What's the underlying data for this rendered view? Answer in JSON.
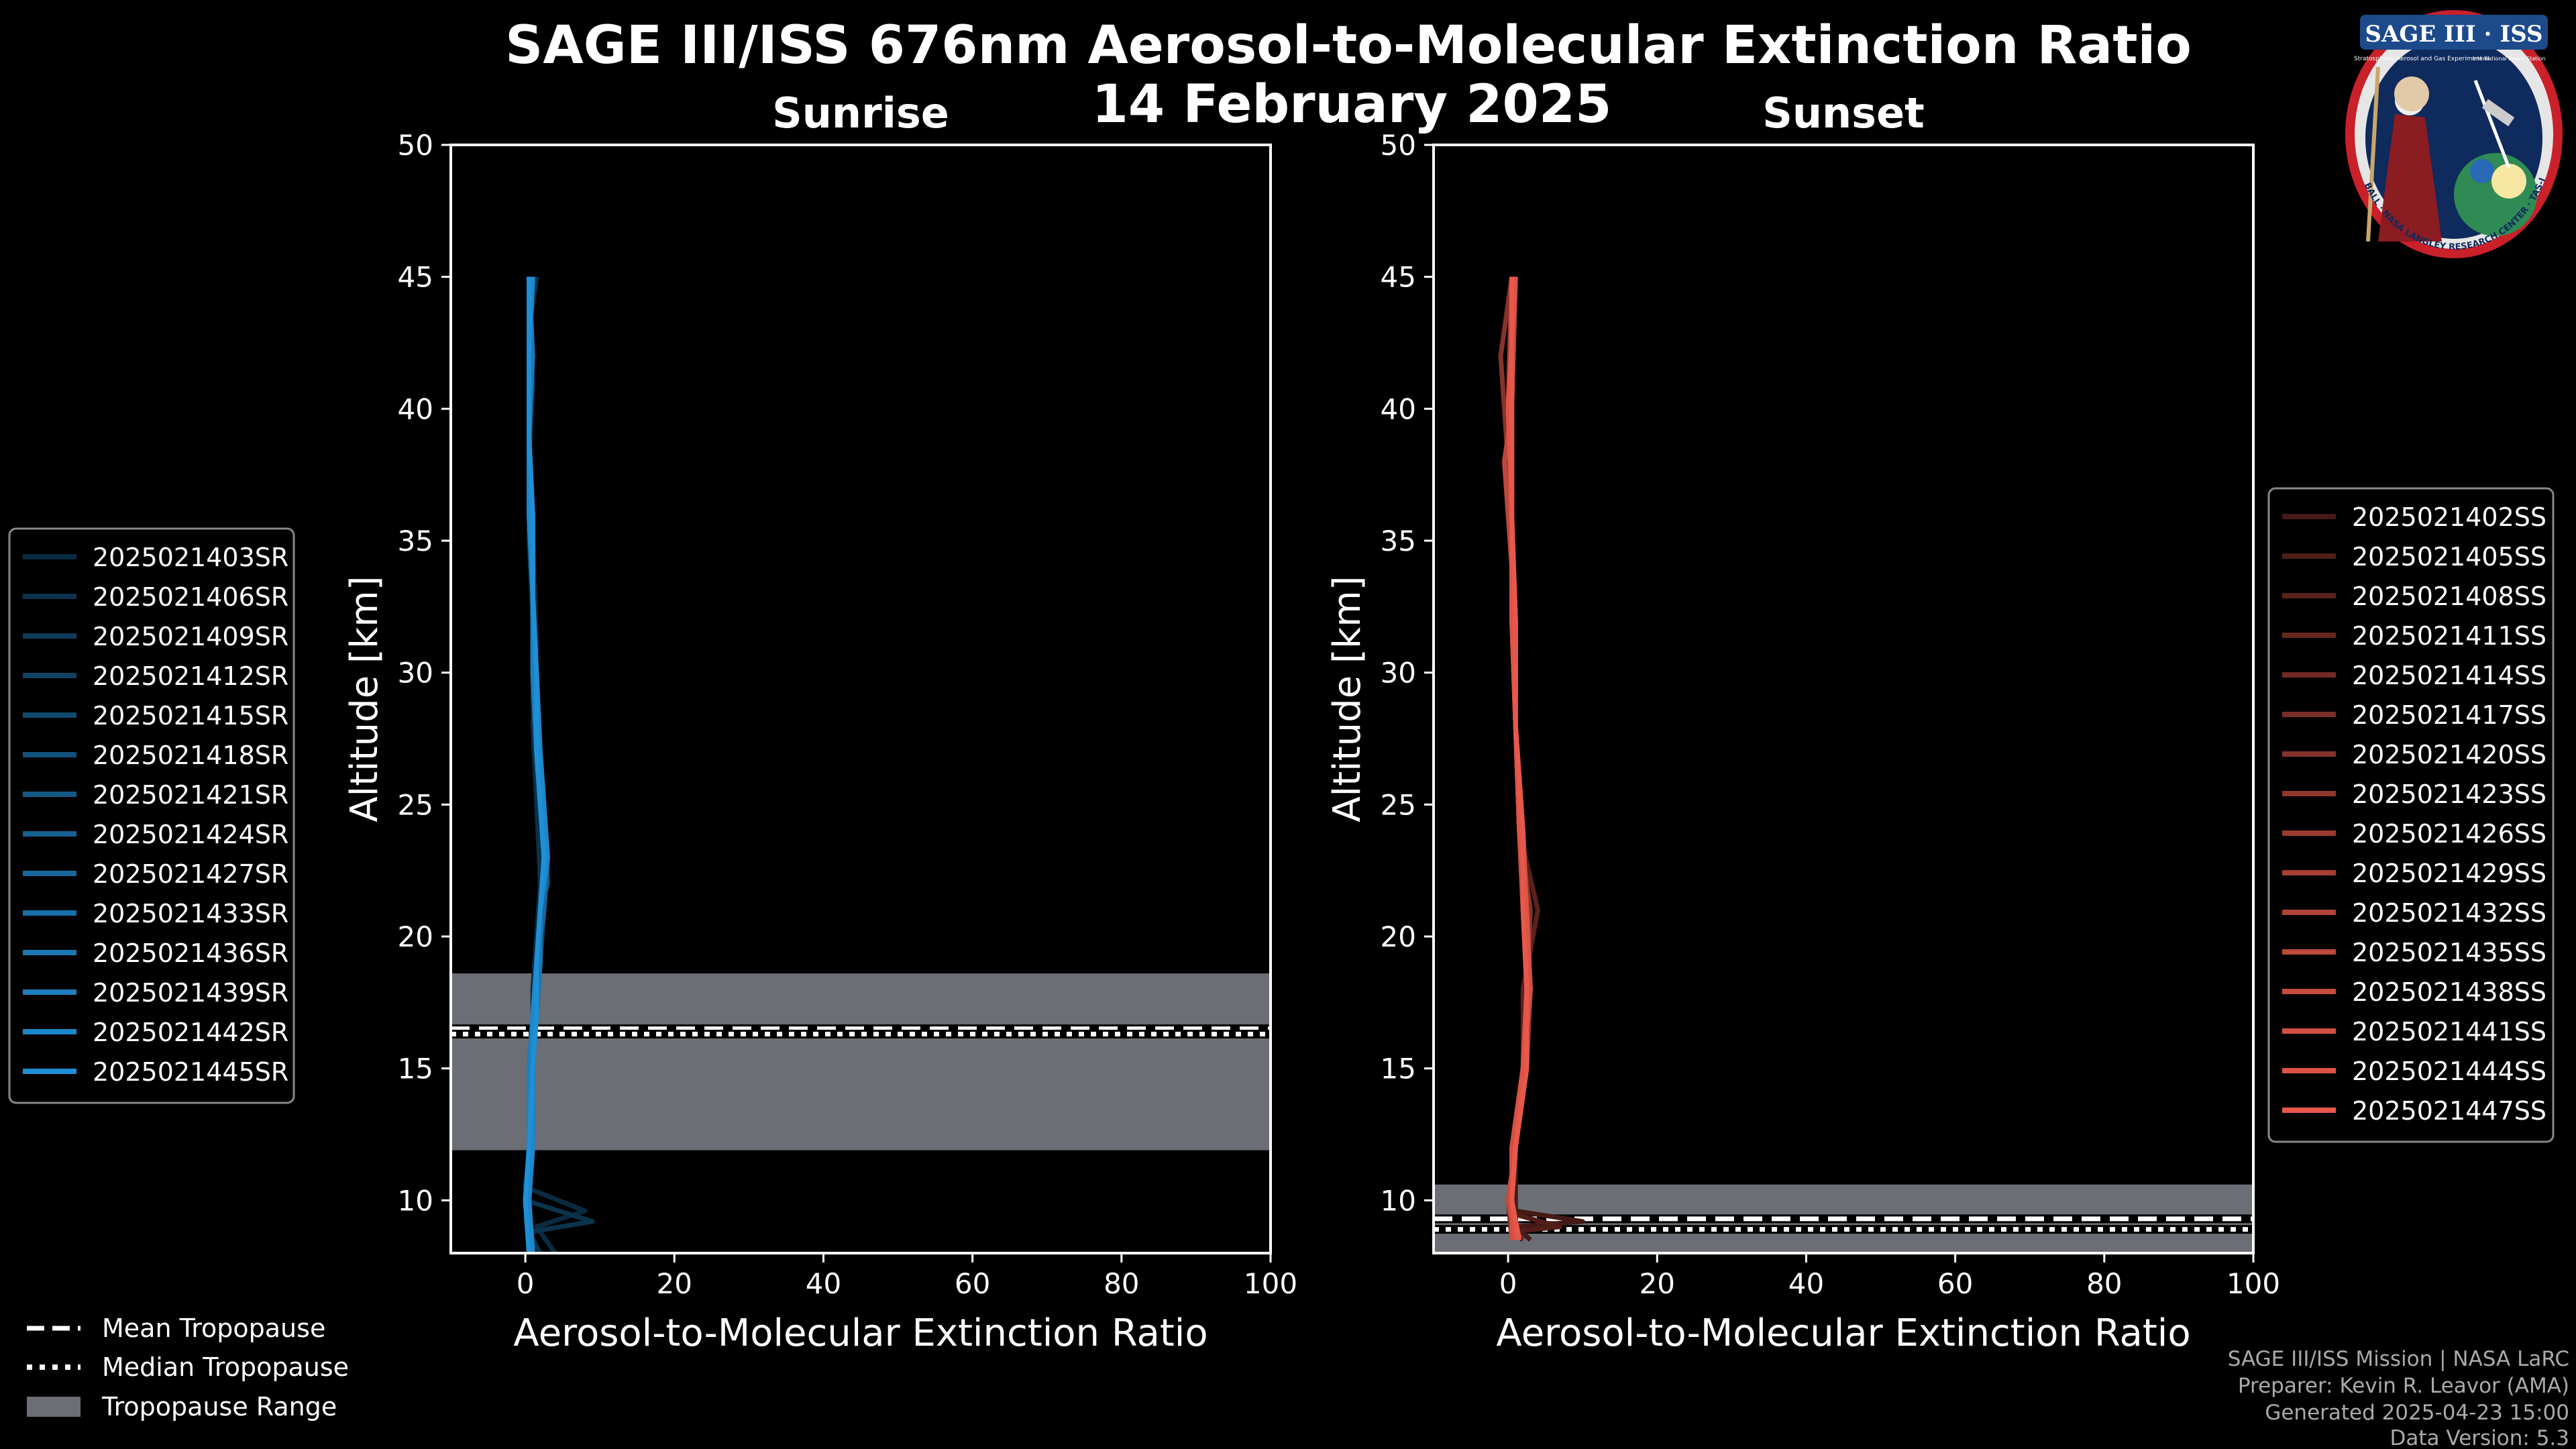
{
  "figure": {
    "title_line1": "SAGE III/ISS 676nm Aerosol-to-Molecular Extinction Ratio",
    "title_line2": "14 February 2025"
  },
  "logo": {
    "text": "SAGE III · ISS",
    "subtitle": "Stratospheric Aerosol and Gas Experiment III",
    "ring_text": "BALL · NASA LANGLEY RESEARCH CENTER · TAS-I · ESA",
    "side_text": "International Space Station"
  },
  "credits": {
    "line1": "SAGE III/ISS Mission | NASA LaRC",
    "line2": "Preparer: Kevin R. Leavor (AMA)",
    "line3": "Generated 2025-04-23 15:00",
    "line4": "Data Version: 5.3"
  },
  "tropo_legend": {
    "mean": "Mean Tropopause",
    "median": "Median Tropopause",
    "range": "Tropopause Range"
  },
  "colors": {
    "sunrise": "#1f8fd6",
    "sunset": "#e8584a",
    "tropo_fill": "#6b6e74",
    "axes": "#ffffff"
  },
  "chart_data": [
    {
      "type": "line",
      "panel": "sunrise",
      "title": "Sunrise",
      "xlabel": "Aerosol-to-Molecular Extinction Ratio",
      "ylabel": "Altitude [km]",
      "xlim": [
        -10,
        100
      ],
      "ylim": [
        8,
        50
      ],
      "xticks": [
        0,
        20,
        40,
        60,
        80,
        100
      ],
      "yticks": [
        10,
        15,
        20,
        25,
        30,
        35,
        40,
        45,
        50
      ],
      "tropopause": {
        "mean": 16.5,
        "median": 16.3,
        "range": [
          11.9,
          18.6
        ]
      },
      "legend_position": "left",
      "series": [
        {
          "name": "2025021403SR",
          "x": [
            4,
            1.5,
            8,
            0,
            0.5,
            0.5,
            1,
            1,
            1.5,
            2,
            1.5,
            1,
            1.5,
            1,
            0.5,
            0.5,
            0.5,
            1
          ],
          "y": [
            8,
            9,
            9.6,
            10.5,
            11.5,
            13,
            16,
            18,
            20,
            22,
            25,
            28,
            31,
            35,
            38,
            41,
            43,
            45
          ]
        },
        {
          "name": "2025021406SR",
          "x": [
            2,
            0.5,
            9,
            0,
            0.5,
            1,
            1,
            1.5,
            2,
            2,
            1.5,
            1,
            1,
            0.5,
            0.5,
            1,
            0.5,
            1.5
          ],
          "y": [
            8,
            8.8,
            9.2,
            10,
            12,
            15,
            17,
            19,
            21,
            23,
            26,
            29,
            32,
            35,
            38,
            41,
            43,
            45
          ]
        },
        {
          "name": "2025021409SR",
          "x": [
            1,
            0,
            0.5,
            1,
            1,
            1.5,
            2,
            2.5,
            2,
            1.5,
            1.5,
            1,
            1,
            0.5,
            0.5,
            0.5
          ],
          "y": [
            8,
            10,
            12,
            15,
            17,
            19,
            21,
            23,
            25,
            27,
            30,
            33,
            36,
            39,
            42,
            45
          ]
        },
        {
          "name": "2025021412SR",
          "x": [
            0.5,
            0,
            0.5,
            0.5,
            1,
            1.5,
            2,
            2.5,
            2,
            1.5,
            1,
            1,
            0.5,
            0.5,
            0.5,
            1
          ],
          "y": [
            8,
            10,
            12,
            15,
            17,
            19,
            21,
            23,
            25,
            27,
            30,
            33,
            36,
            39,
            42,
            45
          ]
        },
        {
          "name": "2025021415SR",
          "x": [
            1,
            0.5,
            1,
            1,
            1.5,
            2,
            2.5,
            3,
            2.5,
            2,
            1.5,
            1,
            1,
            0.5,
            0.5,
            0.5
          ],
          "y": [
            8,
            10,
            12,
            15,
            17,
            19,
            21,
            23,
            25,
            27,
            30,
            33,
            36,
            39,
            42,
            45
          ]
        },
        {
          "name": "2025021418SR",
          "x": [
            0.5,
            0,
            0.5,
            1,
            1,
            1.5,
            2,
            3,
            2.5,
            2,
            1.5,
            1,
            0.5,
            0.5,
            1,
            0.5
          ],
          "y": [
            8,
            10,
            12,
            15,
            17,
            19,
            21,
            22,
            25,
            27,
            30,
            33,
            36,
            39,
            42,
            45
          ]
        },
        {
          "name": "2025021421SR",
          "x": [
            1,
            0.5,
            0.5,
            1,
            1.5,
            1.5,
            2,
            2.5,
            2,
            2,
            1.5,
            1,
            1,
            0.5,
            0.5,
            1
          ],
          "y": [
            8,
            10,
            12,
            15,
            17,
            19,
            21,
            23,
            25,
            27,
            30,
            33,
            36,
            39,
            42,
            45
          ]
        },
        {
          "name": "2025021424SR",
          "x": [
            0.5,
            0,
            0.5,
            0.5,
            1,
            1.5,
            2,
            2.5,
            2,
            1.5,
            1.5,
            1,
            0.5,
            0.5,
            0.5,
            0.5
          ],
          "y": [
            8,
            10,
            12,
            15,
            17,
            19,
            21,
            23,
            25,
            27,
            30,
            33,
            36,
            39,
            42,
            45
          ]
        },
        {
          "name": "2025021427SR",
          "x": [
            1,
            0.5,
            1,
            1,
            1,
            1.5,
            2.5,
            3,
            2.5,
            2,
            1.5,
            1,
            1,
            0.5,
            0.5,
            1
          ],
          "y": [
            8,
            10,
            12,
            15,
            17,
            19,
            21,
            23,
            25,
            27,
            30,
            33,
            36,
            39,
            42,
            45
          ]
        },
        {
          "name": "2025021433SR",
          "x": [
            0.5,
            0,
            0.5,
            1,
            1,
            1.5,
            2,
            2.5,
            2,
            1.5,
            1,
            1,
            0.5,
            0.5,
            0.5,
            0.5
          ],
          "y": [
            8,
            10,
            12,
            15,
            17,
            19,
            21,
            23,
            25,
            27,
            30,
            33,
            36,
            39,
            42,
            45
          ]
        },
        {
          "name": "2025021436SR",
          "x": [
            1,
            0.5,
            0.5,
            1,
            1.5,
            2,
            2,
            2.5,
            2.5,
            2,
            1.5,
            1,
            1,
            0.5,
            1,
            0.5
          ],
          "y": [
            8,
            10,
            12,
            15,
            17,
            19,
            21,
            23,
            25,
            27,
            30,
            33,
            36,
            39,
            42,
            45
          ]
        },
        {
          "name": "2025021439SR",
          "x": [
            0.5,
            0,
            0.5,
            0.5,
            1,
            1.5,
            2,
            2.5,
            2,
            1.5,
            1,
            1,
            0.5,
            0.5,
            0.5,
            0.5
          ],
          "y": [
            8,
            10,
            12,
            15,
            17,
            19,
            21,
            23,
            25,
            27,
            30,
            33,
            36,
            39,
            42,
            45
          ]
        },
        {
          "name": "2025021442SR",
          "x": [
            1,
            0.5,
            1,
            1,
            1,
            1.5,
            2,
            3,
            2.5,
            2,
            1.5,
            1,
            0.5,
            0.5,
            0.5,
            1
          ],
          "y": [
            8,
            10,
            12,
            15,
            17,
            19,
            21,
            23,
            25,
            27,
            30,
            33,
            36,
            39,
            42,
            45
          ]
        },
        {
          "name": "2025021445SR",
          "x": [
            0.5,
            0,
            0.5,
            1,
            1.5,
            1.5,
            2,
            2.5,
            2,
            1.5,
            1.5,
            1,
            1,
            0.5,
            0.5,
            0.5
          ],
          "y": [
            8,
            10,
            12,
            15,
            17,
            19,
            21,
            23,
            25,
            27,
            30,
            33,
            36,
            39,
            42,
            45
          ]
        }
      ]
    },
    {
      "type": "line",
      "panel": "sunset",
      "title": "Sunset",
      "xlabel": "Aerosol-to-Molecular Extinction Ratio",
      "ylabel": "Altitude [km]",
      "xlim": [
        -10,
        100
      ],
      "ylim": [
        8,
        50
      ],
      "xticks": [
        0,
        20,
        40,
        60,
        80,
        100
      ],
      "yticks": [
        10,
        15,
        20,
        25,
        30,
        35,
        40,
        45,
        50
      ],
      "tropopause": {
        "mean": 9.3,
        "median": 8.9,
        "range": [
          8.0,
          10.6
        ]
      },
      "legend_position": "right",
      "series": [
        {
          "name": "2025021402SS",
          "x": [
            3,
            1,
            10,
            1,
            1,
            2,
            3,
            2,
            1.5,
            1,
            0.5,
            0.5,
            0.5,
            0.5
          ],
          "y": [
            8.5,
            9,
            9.2,
            9.6,
            12,
            15,
            18,
            21,
            24,
            28,
            32,
            36,
            40,
            45
          ]
        },
        {
          "name": "2025021405SS",
          "x": [
            2,
            0.5,
            7,
            0.5,
            1,
            2.5,
            2.5,
            3,
            1.5,
            1,
            1,
            0.5,
            0,
            0.5
          ],
          "y": [
            8.5,
            8.8,
            9,
            9.5,
            12,
            15,
            18,
            21,
            24,
            28,
            32,
            36,
            40,
            45
          ]
        },
        {
          "name": "2025021408SS",
          "x": [
            1,
            0.5,
            1,
            2,
            2,
            4,
            1.5,
            1,
            0.5,
            0.5,
            0.5,
            1
          ],
          "y": [
            8.5,
            10,
            12,
            15,
            18,
            21,
            24,
            28,
            32,
            36,
            40,
            45
          ]
        },
        {
          "name": "2025021411SS",
          "x": [
            1.5,
            0.5,
            1,
            2.5,
            2.5,
            2.5,
            2,
            1,
            1,
            0.5,
            0,
            0.5
          ],
          "y": [
            8.5,
            10,
            12,
            15,
            18,
            21,
            24,
            28,
            32,
            36,
            40,
            45
          ]
        },
        {
          "name": "2025021414SS",
          "x": [
            1,
            0.5,
            1,
            2,
            3,
            2,
            1.5,
            1,
            0.5,
            0.5,
            0.5,
            0.5
          ],
          "y": [
            8.5,
            10,
            12,
            15,
            18,
            21,
            24,
            28,
            32,
            36,
            40,
            45
          ]
        },
        {
          "name": "2025021417SS",
          "x": [
            0.5,
            0,
            1,
            2,
            2.5,
            2.5,
            2,
            1,
            1,
            0.5,
            0.5,
            1
          ],
          "y": [
            8.5,
            10,
            12,
            15,
            18,
            21,
            24,
            28,
            32,
            36,
            40,
            45
          ]
        },
        {
          "name": "2025021420SS",
          "x": [
            1,
            0.5,
            0.5,
            2,
            2.5,
            3,
            1.5,
            1,
            0.5,
            0.5,
            -1,
            0.5
          ],
          "y": [
            8.5,
            10,
            12,
            15,
            18,
            21,
            24,
            28,
            32,
            36,
            42,
            45
          ]
        },
        {
          "name": "2025021423SS",
          "x": [
            1.5,
            0.5,
            1,
            2.5,
            3,
            2,
            2,
            1,
            1,
            0.5,
            0.5,
            0.5
          ],
          "y": [
            8.5,
            10,
            12,
            15,
            18,
            21,
            24,
            28,
            32,
            36,
            40,
            45
          ]
        },
        {
          "name": "2025021426SS",
          "x": [
            1,
            0,
            1,
            2,
            2.5,
            2.5,
            1.5,
            1,
            0.5,
            0.5,
            0.5,
            1
          ],
          "y": [
            8.5,
            10,
            12,
            15,
            18,
            21,
            24,
            28,
            32,
            36,
            40,
            45
          ]
        },
        {
          "name": "2025021429SS",
          "x": [
            0.5,
            0.5,
            1,
            2.5,
            2.5,
            2,
            2,
            1,
            1,
            0.5,
            0,
            0.5
          ],
          "y": [
            8.5,
            10,
            12,
            15,
            18,
            21,
            24,
            28,
            32,
            36,
            40,
            45
          ]
        },
        {
          "name": "2025021432SS",
          "x": [
            1,
            0.5,
            0.5,
            2,
            3,
            2.5,
            1.5,
            1,
            0.5,
            0.5,
            0.5,
            0.5
          ],
          "y": [
            8.5,
            10,
            12,
            15,
            18,
            21,
            24,
            28,
            32,
            36,
            40,
            45
          ]
        },
        {
          "name": "2025021435SS",
          "x": [
            1.5,
            0.5,
            1,
            2,
            2.5,
            2.5,
            2,
            1,
            1,
            -0.5,
            0.5,
            1
          ],
          "y": [
            8.5,
            10,
            12,
            15,
            18,
            21,
            24,
            28,
            32,
            38,
            40,
            45
          ]
        },
        {
          "name": "2025021438SS",
          "x": [
            1,
            0,
            1,
            2.5,
            2.5,
            2,
            1.5,
            1,
            0.5,
            0.5,
            0.5,
            0.5
          ],
          "y": [
            8.5,
            10,
            12,
            15,
            18,
            21,
            24,
            28,
            32,
            36,
            40,
            45
          ]
        },
        {
          "name": "2025021441SS",
          "x": [
            0.5,
            0.5,
            0.5,
            2,
            3,
            2.5,
            2,
            1,
            1,
            0.5,
            0.5,
            0.5
          ],
          "y": [
            8.5,
            10,
            12,
            15,
            18,
            21,
            24,
            28,
            32,
            36,
            40,
            45
          ]
        },
        {
          "name": "2025021444SS",
          "x": [
            1,
            0.5,
            1,
            2,
            2.5,
            2.5,
            1.5,
            1,
            0.5,
            0.5,
            0,
            1
          ],
          "y": [
            8.5,
            10,
            12,
            15,
            18,
            21,
            24,
            28,
            32,
            36,
            40,
            45
          ]
        },
        {
          "name": "2025021447SS",
          "x": [
            1.5,
            0.5,
            1,
            2.5,
            2.5,
            2,
            2,
            1,
            1,
            0.5,
            0.5,
            0.5
          ],
          "y": [
            8.5,
            10,
            12,
            15,
            18,
            21,
            24,
            28,
            32,
            36,
            40,
            45
          ]
        }
      ]
    }
  ]
}
